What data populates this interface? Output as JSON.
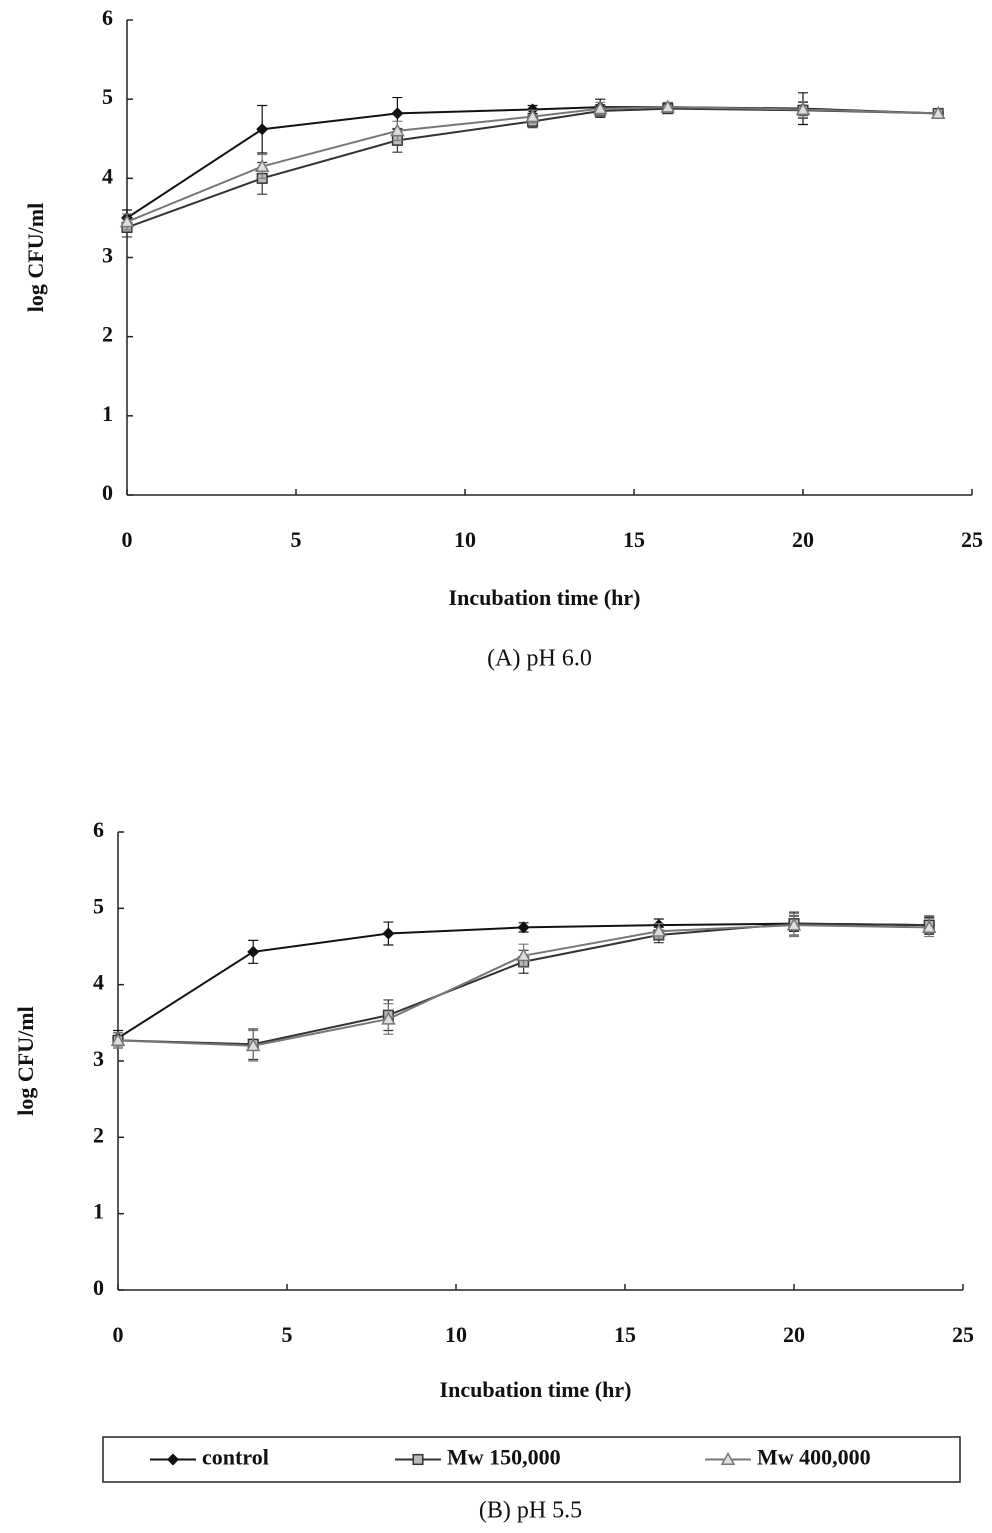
{
  "chart_data": [
    {
      "type": "line",
      "caption": "(A) pH 6.0",
      "xlabel": "Incubation time (hr)",
      "ylabel": "log CFU/ml",
      "x": [
        0,
        4,
        8,
        12,
        14,
        16,
        20,
        24
      ],
      "series": [
        {
          "color": "#111111",
          "marker": "diamond",
          "values": [
            3.5,
            4.62,
            4.82,
            4.87,
            4.9,
            4.9,
            4.88,
            4.82
          ],
          "errors": [
            0.1,
            0.3,
            0.2,
            0.05,
            0.1,
            0.05,
            0.2,
            0.05
          ]
        },
        {
          "color": "#333333",
          "marker": "square",
          "values": [
            3.38,
            4.0,
            4.48,
            4.72,
            4.85,
            4.88,
            4.86,
            4.82
          ],
          "errors": [
            0.12,
            0.2,
            0.15,
            0.08,
            0.08,
            0.06,
            0.1,
            0.05
          ]
        },
        {
          "color": "#777777",
          "marker": "triangle",
          "values": [
            3.45,
            4.15,
            4.6,
            4.78,
            4.88,
            4.9,
            4.87,
            4.82
          ],
          "errors": [
            0.1,
            0.15,
            0.12,
            0.08,
            0.08,
            0.06,
            0.1,
            0.05
          ]
        }
      ],
      "xlim": [
        0,
        25
      ],
      "xticks": [
        0,
        5,
        10,
        15,
        20,
        25
      ],
      "ylim": [
        0,
        6
      ],
      "yticks": [
        0,
        1,
        2,
        3,
        4,
        5,
        6
      ]
    },
    {
      "type": "line",
      "caption": "(B) pH 5.5",
      "xlabel": "Incubation time (hr)",
      "ylabel": "log CFU/ml",
      "x": [
        0,
        4,
        8,
        12,
        16,
        20,
        24
      ],
      "series": [
        {
          "name": "control",
          "color": "#111111",
          "marker": "diamond",
          "values": [
            3.3,
            4.43,
            4.67,
            4.75,
            4.78,
            4.8,
            4.78
          ],
          "errors": [
            0.1,
            0.15,
            0.15,
            0.06,
            0.08,
            0.1,
            0.1
          ]
        },
        {
          "name": "Mw 150,000",
          "color": "#333333",
          "marker": "square",
          "values": [
            3.27,
            3.22,
            3.6,
            4.3,
            4.65,
            4.8,
            4.78
          ],
          "errors": [
            0.1,
            0.2,
            0.2,
            0.15,
            0.1,
            0.15,
            0.12
          ]
        },
        {
          "name": "Mw 400,000",
          "color": "#777777",
          "marker": "triangle",
          "values": [
            3.27,
            3.2,
            3.55,
            4.38,
            4.7,
            4.78,
            4.75
          ],
          "errors": [
            0.1,
            0.2,
            0.2,
            0.15,
            0.1,
            0.15,
            0.12
          ]
        }
      ],
      "xlim": [
        0,
        25
      ],
      "xticks": [
        0,
        5,
        10,
        15,
        20,
        25
      ],
      "ylim": [
        0,
        6
      ],
      "yticks": [
        0,
        1,
        2,
        3,
        4,
        5,
        6
      ],
      "legend": "bottom"
    }
  ]
}
